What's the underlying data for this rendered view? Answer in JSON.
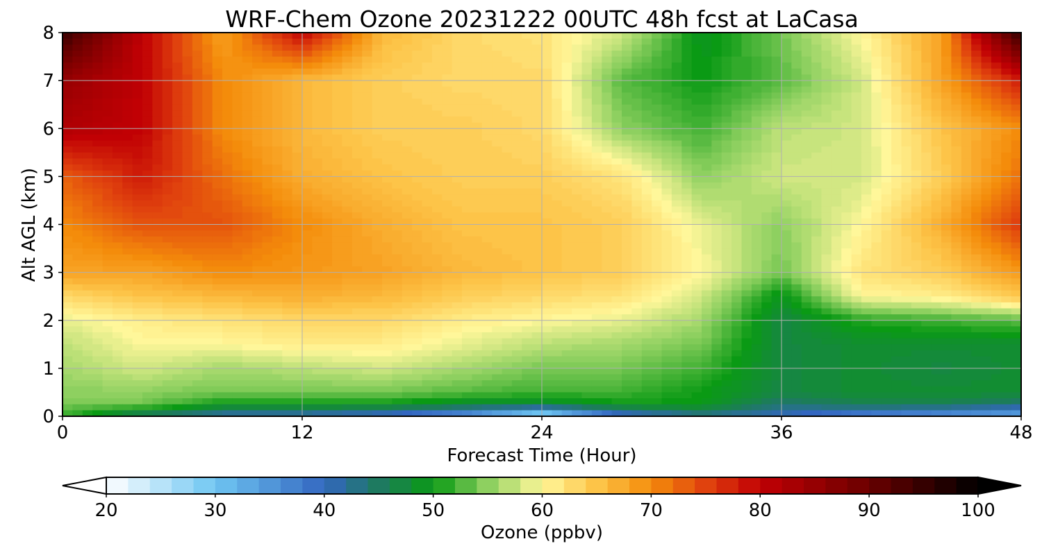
{
  "chart_data": {
    "type": "heatmap",
    "title": "WRF-Chem Ozone  20231222 00UTC 48h fcst at LaCasa",
    "xlabel": "Forecast Time (Hour)",
    "ylabel": "Alt AGL (km)",
    "xlim": [
      0,
      48
    ],
    "ylim": [
      0,
      8
    ],
    "x_ticks": [
      0,
      12,
      24,
      36,
      48
    ],
    "y_ticks": [
      0,
      1,
      2,
      3,
      4,
      5,
      6,
      7,
      8
    ],
    "grid": true,
    "colorbar": {
      "label": "Ozone  (ppbv)",
      "range": [
        20,
        100
      ],
      "ticks": [
        20,
        30,
        40,
        50,
        60,
        70,
        80,
        90,
        100
      ],
      "extend": "both",
      "stops": [
        [
          20,
          "#ffffff"
        ],
        [
          30,
          "#6fc6f2"
        ],
        [
          40,
          "#3366c0"
        ],
        [
          45,
          "#1e7a60"
        ],
        [
          50,
          "#0a9a14"
        ],
        [
          55,
          "#8ed060"
        ],
        [
          60,
          "#fff79a"
        ],
        [
          65,
          "#fdc448"
        ],
        [
          70,
          "#f48c0b"
        ],
        [
          75,
          "#e0420e"
        ],
        [
          80,
          "#c10004"
        ],
        [
          90,
          "#6a0000"
        ],
        [
          100,
          "#000000"
        ]
      ],
      "under_color": "#ffffff",
      "over_color": "#000000"
    },
    "x": [
      0,
      4,
      8,
      12,
      16,
      20,
      24,
      28,
      32,
      36,
      40,
      44,
      48
    ],
    "y": [
      0,
      0.25,
      0.5,
      1,
      1.5,
      2,
      2.5,
      3,
      4,
      5,
      6,
      7,
      8
    ],
    "z": [
      [
        52,
        44,
        40,
        40,
        38,
        34,
        24,
        38,
        42,
        40,
        36,
        34,
        32
      ],
      [
        54,
        54,
        50,
        50,
        50,
        48,
        48,
        50,
        50,
        44,
        46,
        46,
        44
      ],
      [
        55,
        55,
        54,
        54,
        54,
        53,
        52,
        52,
        50,
        47,
        48,
        48,
        48
      ],
      [
        56,
        58,
        56,
        57,
        58,
        56,
        54,
        54,
        52,
        47,
        48,
        47,
        48
      ],
      [
        57,
        60,
        60,
        61,
        61,
        59,
        57,
        56,
        54,
        47,
        48,
        48,
        48
      ],
      [
        59,
        61,
        62,
        63,
        63,
        61,
        60,
        59,
        56,
        47,
        51,
        52,
        53
      ],
      [
        63,
        65,
        66,
        67,
        66,
        64,
        63,
        62,
        58,
        49,
        60,
        61,
        65
      ],
      [
        68,
        68,
        70,
        69,
        68,
        66,
        65,
        64,
        60,
        54,
        62,
        64,
        69
      ],
      [
        70,
        74,
        74,
        70,
        67,
        65,
        65,
        64,
        59,
        55,
        60,
        67,
        76
      ],
      [
        73,
        78,
        72,
        67,
        65,
        64,
        64,
        62,
        55,
        58,
        58,
        64,
        72
      ],
      [
        82,
        80,
        70,
        66,
        64,
        64,
        63,
        55,
        52,
        57,
        58,
        65,
        70
      ],
      [
        85,
        80,
        70,
        66,
        64,
        63,
        63,
        53,
        50,
        53,
        58,
        68,
        78
      ],
      [
        95,
        80,
        68,
        80,
        66,
        63,
        62,
        58,
        49,
        54,
        60,
        68,
        96
      ]
    ]
  }
}
